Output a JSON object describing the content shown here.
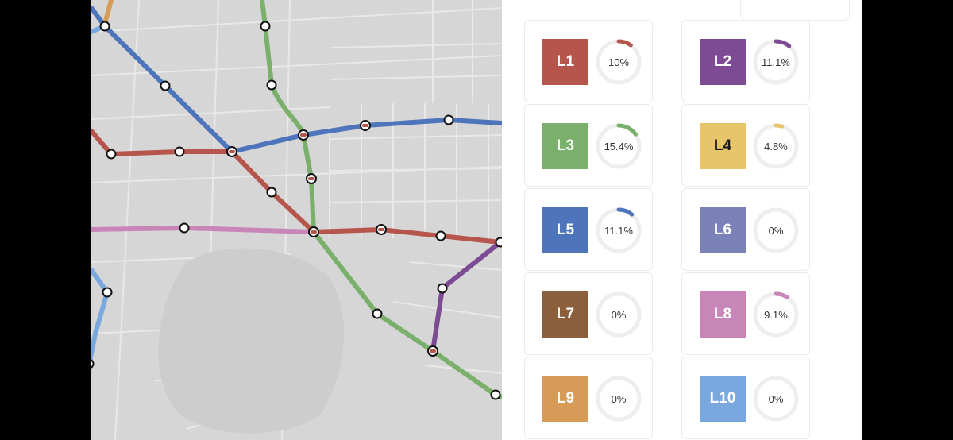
{
  "lines": [
    {
      "id": "L1",
      "label": "L1",
      "color": "#b5554b",
      "percent": "10%",
      "fraction": 0.1,
      "text": "light"
    },
    {
      "id": "L2",
      "label": "L2",
      "color": "#7d4b93",
      "percent": "11.1%",
      "fraction": 0.111,
      "text": "light"
    },
    {
      "id": "L3",
      "label": "L3",
      "color": "#7ab06c",
      "percent": "15.4%",
      "fraction": 0.154,
      "text": "light"
    },
    {
      "id": "L4",
      "label": "L4",
      "color": "#e8c56a",
      "percent": "4.8%",
      "fraction": 0.048,
      "text": "dark"
    },
    {
      "id": "L5",
      "label": "L5",
      "color": "#4e75bb",
      "percent": "11.1%",
      "fraction": 0.111,
      "text": "light"
    },
    {
      "id": "L6",
      "label": "L6",
      "color": "#7a82b8",
      "percent": "0%",
      "fraction": 0,
      "text": "light"
    },
    {
      "id": "L7",
      "label": "L7",
      "color": "#8c5f3c",
      "percent": "0%",
      "fraction": 0,
      "text": "light"
    },
    {
      "id": "L8",
      "label": "L8",
      "color": "#c886b8",
      "percent": "9.1%",
      "fraction": 0.091,
      "text": "light"
    },
    {
      "id": "L9",
      "label": "L9",
      "color": "#d69b57",
      "percent": "0%",
      "fraction": 0,
      "text": "light"
    },
    {
      "id": "L10",
      "label": "L10",
      "color": "#78a8de",
      "percent": "0%",
      "fraction": 0,
      "text": "light"
    }
  ],
  "ring_track_color": "#eeeeee",
  "map": {
    "background": "#d6d6d6",
    "street_color": "#eaeaea"
  }
}
